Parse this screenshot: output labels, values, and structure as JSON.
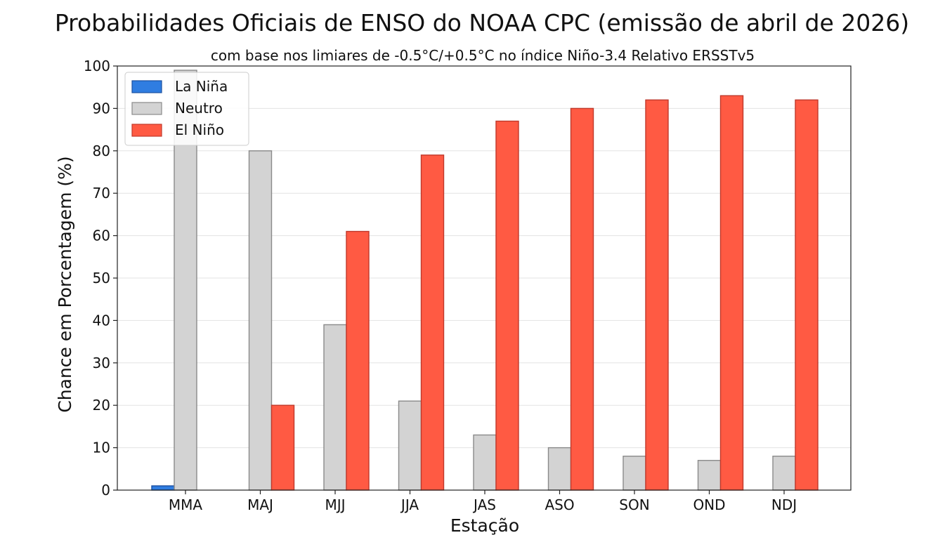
{
  "chart_data": {
    "type": "bar",
    "title": "Probabilidades Oficiais de ENSO do NOAA CPC (emissão de abril de 2026)",
    "subtitle": "com base nos limiares de -0.5°C/+0.5°C no índice Niño-3.4 Relativo ERSSTv5",
    "xlabel": "Estação",
    "ylabel": "Chance em Porcentagem (%)",
    "ylim": [
      0,
      100
    ],
    "yticks": [
      0,
      10,
      20,
      30,
      40,
      50,
      60,
      70,
      80,
      90,
      100
    ],
    "grid": true,
    "legend_position": "top-left",
    "categories": [
      "MMA",
      "MAJ",
      "MJJ",
      "JJA",
      "JAS",
      "ASO",
      "SON",
      "OND",
      "NDJ"
    ],
    "series": [
      {
        "name": "La Niña",
        "color": "#2f7de1",
        "edge": "#1a4fa0",
        "values": [
          1,
          0,
          0,
          0,
          0,
          0,
          0,
          0,
          0
        ]
      },
      {
        "name": "Neutro",
        "color": "#d3d3d3",
        "edge": "#8a8a8a",
        "values": [
          99,
          80,
          39,
          21,
          13,
          10,
          8,
          7,
          8
        ]
      },
      {
        "name": "El Niño",
        "color": "#ff5a43",
        "edge": "#c0392b",
        "values": [
          0,
          20,
          61,
          79,
          87,
          90,
          92,
          93,
          92
        ]
      }
    ]
  }
}
